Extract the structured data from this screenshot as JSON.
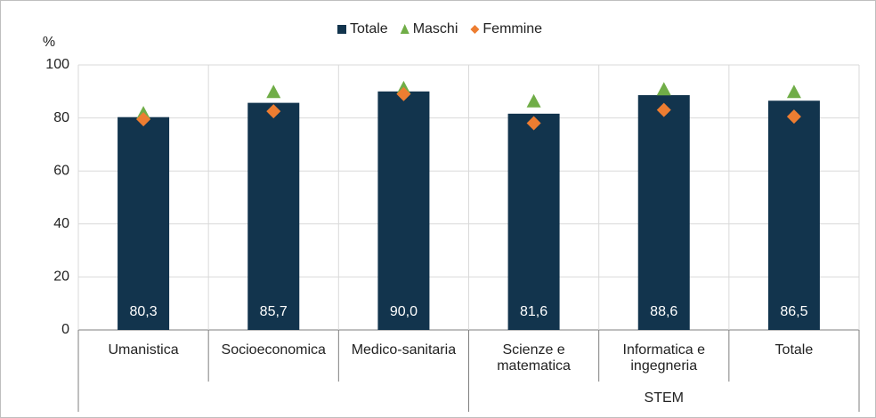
{
  "chart_data": {
    "type": "bar",
    "y_label": "%",
    "categories": [
      "Umanistica",
      "Socioeconomica",
      "Medico-sanitaria",
      "Scienze e matematica",
      "Informatica e ingegneria",
      "Totale"
    ],
    "group_labels": [
      null,
      null,
      null,
      "STEM",
      "STEM",
      "STEM"
    ],
    "series": [
      {
        "name": "Totale",
        "color": "#12344d",
        "marker": "bar",
        "values": [
          80.3,
          85.7,
          90.0,
          81.6,
          88.6,
          86.5
        ],
        "value_labels": [
          "80,3",
          "85,7",
          "90,0",
          "81,6",
          "88,6",
          "86,5"
        ]
      },
      {
        "name": "Maschi",
        "color": "#70ad47",
        "marker": "triangle",
        "values": [
          81.5,
          89.5,
          91,
          86,
          90.5,
          89.5
        ]
      },
      {
        "name": "Femmine",
        "color": "#ed7d31",
        "marker": "diamond",
        "values": [
          79.5,
          82.5,
          89,
          78,
          83,
          80.5
        ]
      }
    ],
    "ylim": [
      0,
      100
    ],
    "yticks": [
      0,
      20,
      40,
      60,
      80,
      100
    ],
    "grid": true,
    "legend": "top"
  }
}
